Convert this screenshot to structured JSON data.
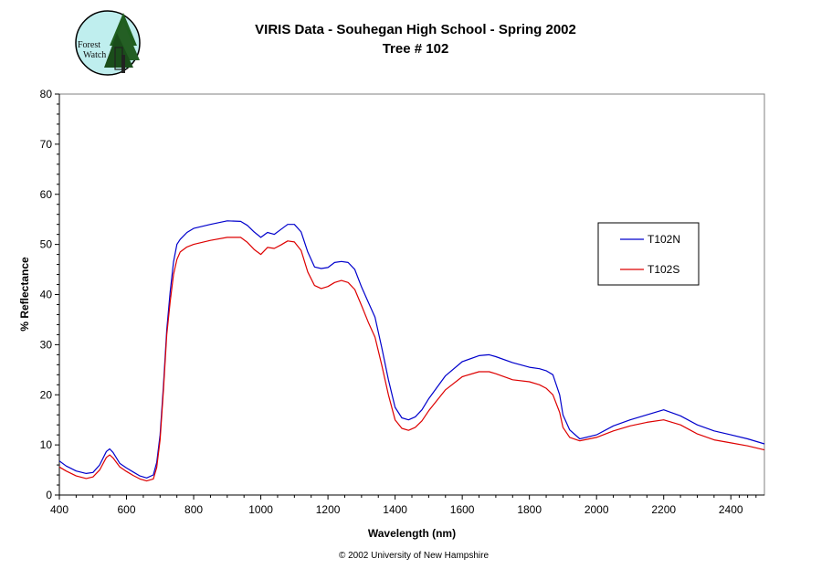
{
  "logo": {
    "line1": "Forest",
    "line2": "Watch",
    "bg_color": "#bfeeee",
    "tree_color": "#1f5f1f"
  },
  "footer": "© 2002 University of New Hampshire",
  "chart_data": {
    "type": "line",
    "title": "VIRIS Data - Souhegan High School - Spring 2002",
    "subtitle": "Tree # 102",
    "xlabel": "Wavelength (nm)",
    "ylabel": "% Reflectance",
    "xlim": [
      400,
      2500
    ],
    "ylim": [
      0,
      80
    ],
    "xticks": [
      400,
      600,
      800,
      1000,
      1200,
      1400,
      1600,
      1800,
      2000,
      2200,
      2400
    ],
    "yticks": [
      0,
      10,
      20,
      30,
      40,
      50,
      60,
      70,
      80
    ],
    "grid": false,
    "legend_position": "right",
    "series": [
      {
        "name": "T102N",
        "color": "#0000cc",
        "x": [
          400,
          420,
          450,
          480,
          500,
          520,
          540,
          550,
          560,
          580,
          600,
          620,
          640,
          660,
          680,
          690,
          700,
          710,
          720,
          730,
          740,
          750,
          760,
          780,
          800,
          850,
          900,
          940,
          960,
          980,
          1000,
          1020,
          1040,
          1060,
          1080,
          1100,
          1120,
          1140,
          1160,
          1180,
          1200,
          1220,
          1240,
          1260,
          1280,
          1300,
          1320,
          1340,
          1360,
          1380,
          1400,
          1420,
          1440,
          1460,
          1480,
          1500,
          1550,
          1600,
          1650,
          1680,
          1700,
          1750,
          1800,
          1830,
          1850,
          1870,
          1890,
          1900,
          1920,
          1950,
          2000,
          2050,
          2100,
          2150,
          2200,
          2250,
          2300,
          2350,
          2400,
          2450,
          2500
        ],
        "y": [
          6.8,
          5.8,
          4.8,
          4.3,
          4.5,
          6.0,
          8.7,
          9.2,
          8.5,
          6.3,
          5.4,
          4.6,
          3.8,
          3.4,
          4.0,
          6.5,
          12.0,
          22.0,
          33.0,
          40.5,
          46.5,
          50.0,
          51.0,
          52.4,
          53.2,
          54.0,
          54.7,
          54.6,
          53.8,
          52.5,
          51.4,
          52.4,
          52.0,
          53.0,
          54.0,
          54.0,
          52.5,
          48.5,
          45.5,
          45.2,
          45.4,
          46.4,
          46.6,
          46.4,
          45.0,
          41.5,
          38.5,
          35.5,
          29.5,
          23.0,
          17.5,
          15.4,
          15.0,
          15.6,
          17.0,
          19.2,
          23.8,
          26.6,
          27.8,
          28.0,
          27.6,
          26.4,
          25.5,
          25.2,
          24.8,
          24.0,
          20.0,
          16.0,
          13.0,
          11.2,
          12.0,
          13.8,
          15.0,
          16.0,
          17.0,
          15.8,
          14.0,
          12.8,
          12.0,
          11.2,
          10.2
        ]
      },
      {
        "name": "T102S",
        "color": "#dd0000",
        "x": [
          400,
          420,
          450,
          480,
          500,
          520,
          540,
          550,
          560,
          580,
          600,
          620,
          640,
          660,
          680,
          690,
          700,
          710,
          720,
          730,
          740,
          750,
          760,
          780,
          800,
          850,
          900,
          940,
          960,
          980,
          1000,
          1020,
          1040,
          1060,
          1080,
          1100,
          1120,
          1140,
          1160,
          1180,
          1200,
          1220,
          1240,
          1260,
          1280,
          1300,
          1320,
          1340,
          1360,
          1380,
          1400,
          1420,
          1440,
          1460,
          1480,
          1500,
          1550,
          1600,
          1650,
          1680,
          1700,
          1750,
          1800,
          1830,
          1850,
          1870,
          1890,
          1900,
          1920,
          1950,
          2000,
          2050,
          2100,
          2150,
          2200,
          2250,
          2300,
          2350,
          2400,
          2450,
          2500
        ],
        "y": [
          5.6,
          4.8,
          3.8,
          3.3,
          3.6,
          5.0,
          7.5,
          8.0,
          7.4,
          5.6,
          4.7,
          3.9,
          3.2,
          2.8,
          3.2,
          5.5,
          11.0,
          21.0,
          32.0,
          38.5,
          44.0,
          47.0,
          48.5,
          49.5,
          50.0,
          50.8,
          51.4,
          51.4,
          50.4,
          49.0,
          48.0,
          49.4,
          49.2,
          49.9,
          50.7,
          50.5,
          48.8,
          44.5,
          41.8,
          41.2,
          41.6,
          42.4,
          42.8,
          42.4,
          41.0,
          37.8,
          34.5,
          31.5,
          26.0,
          20.0,
          15.0,
          13.3,
          12.9,
          13.5,
          14.8,
          16.8,
          21.0,
          23.6,
          24.6,
          24.6,
          24.2,
          23.0,
          22.6,
          22.0,
          21.3,
          20.0,
          16.5,
          13.5,
          11.5,
          10.8,
          11.5,
          12.8,
          13.8,
          14.5,
          15.0,
          14.0,
          12.2,
          11.0,
          10.4,
          9.8,
          9.0
        ]
      }
    ]
  }
}
